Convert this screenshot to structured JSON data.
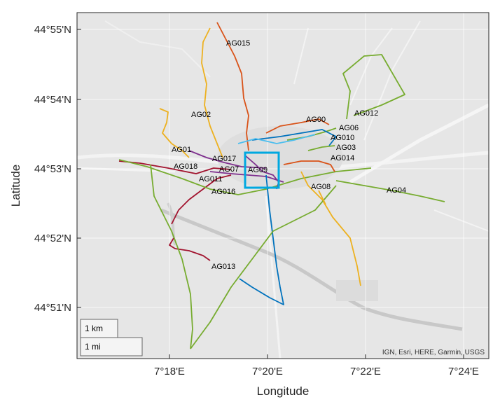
{
  "map": {
    "xlabel": "Longitude",
    "ylabel": "Latitude",
    "x_ticks": [
      "7°18'E",
      "7°20'E",
      "7°22'E",
      "7°24'E"
    ],
    "y_ticks": [
      "44°55'N",
      "44°54'N",
      "44°53'N",
      "44°52'N",
      "44°51'N"
    ],
    "attribution": "IGN, Esri, HERE, Garmin, USGS",
    "scale_bar": {
      "km_label": "1 km",
      "mi_label": "1 mi"
    },
    "basemap": "light-gray-canvas",
    "grid": true
  },
  "routes": [
    {
      "label": "AG015",
      "color": "#D95319"
    },
    {
      "label": "AG02",
      "color": "#EDB120"
    },
    {
      "label": "AG01",
      "color": "#EDB120"
    },
    {
      "label": "AG018",
      "color": "#A2142F"
    },
    {
      "label": "AG017",
      "color": "#7E2F8E"
    },
    {
      "label": "AG07",
      "color": "#7E2F8E"
    },
    {
      "label": "AG011",
      "color": "#A2142F"
    },
    {
      "label": "AG016",
      "color": "#77AC30"
    },
    {
      "label": "AG09",
      "color": "#7E2F8E"
    },
    {
      "label": "AG00",
      "color": "#D95319"
    },
    {
      "label": "AG012",
      "color": "#77AC30"
    },
    {
      "label": "AG06",
      "color": "#77AC30"
    },
    {
      "label": "AG010",
      "color": "#0072BD"
    },
    {
      "label": "AG03",
      "color": "#77AC30"
    },
    {
      "label": "AG014",
      "color": "#D95319"
    },
    {
      "label": "AG08",
      "color": "#EDB120"
    },
    {
      "label": "AG04",
      "color": "#77AC30"
    },
    {
      "label": "AG013",
      "color": "#A2142F"
    }
  ],
  "highlight_box": {
    "color": "#00A8E0"
  }
}
